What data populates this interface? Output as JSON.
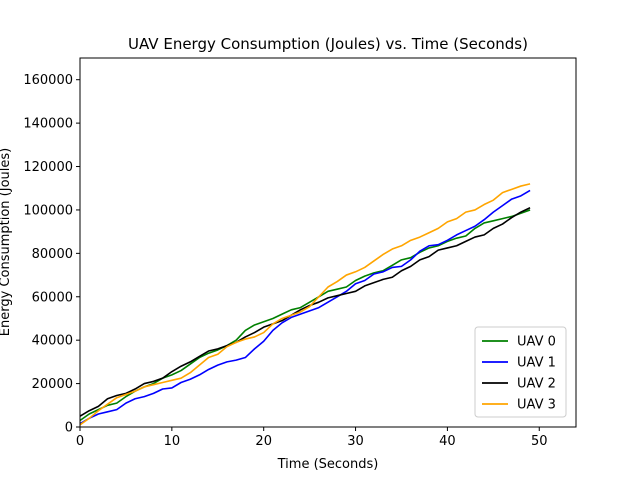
{
  "chart_data": {
    "type": "line",
    "title": "UAV Energy Consumption (Joules) vs. Time (Seconds)",
    "xlabel": "Time (Seconds)",
    "ylabel": "Energy Consumption (Joules)",
    "xlim": [
      0,
      54
    ],
    "ylim": [
      0,
      170000
    ],
    "xticks": [
      0,
      10,
      20,
      30,
      40,
      50
    ],
    "yticks": [
      0,
      20000,
      40000,
      60000,
      80000,
      100000,
      120000,
      140000,
      160000
    ],
    "grid": false,
    "legend_position": "lower-right",
    "x": [
      0,
      1,
      2,
      3,
      4,
      5,
      6,
      7,
      8,
      9,
      10,
      11,
      12,
      13,
      14,
      15,
      16,
      17,
      18,
      19,
      20,
      21,
      22,
      23,
      24,
      25,
      26,
      27,
      28,
      29,
      30,
      31,
      32,
      33,
      34,
      35,
      36,
      37,
      38,
      39,
      40,
      41,
      42,
      43,
      44,
      45,
      46,
      47,
      48,
      49
    ],
    "series": [
      {
        "name": "UAV 0",
        "color": "#008000",
        "values": [
          3000,
          6000,
          8000,
          10000,
          11000,
          14000,
          16500,
          18500,
          20000,
          22500,
          24000,
          26000,
          29000,
          32000,
          34000,
          35500,
          37500,
          40000,
          44500,
          47000,
          48500,
          50000,
          52000,
          54000,
          55000,
          57500,
          60000,
          62500,
          63500,
          64500,
          67500,
          69500,
          71000,
          72000,
          74500,
          77000,
          78000,
          80500,
          82500,
          83500,
          85500,
          87000,
          88000,
          91500,
          94000,
          95000,
          96000,
          97000,
          98500,
          100000
        ]
      },
      {
        "name": "UAV 1",
        "color": "#0000ff",
        "values": [
          1500,
          4000,
          6000,
          7000,
          8000,
          11000,
          13000,
          14000,
          15500,
          17500,
          18000,
          20500,
          22000,
          24000,
          26500,
          28500,
          30000,
          30800,
          32000,
          36000,
          39500,
          44500,
          48000,
          50500,
          52000,
          53500,
          55000,
          57500,
          60000,
          62500,
          66000,
          67500,
          70500,
          71500,
          73500,
          74000,
          77000,
          81000,
          83500,
          84000,
          86000,
          88500,
          90500,
          92500,
          95500,
          99000,
          102000,
          105000,
          106500,
          109000
        ]
      },
      {
        "name": "UAV 2",
        "color": "#000000",
        "values": [
          5000,
          7500,
          9500,
          13000,
          14500,
          15500,
          17500,
          20000,
          21000,
          22500,
          25500,
          28000,
          30000,
          32500,
          35000,
          36000,
          37500,
          39000,
          41500,
          43500,
          46000,
          47500,
          49000,
          51500,
          54000,
          56000,
          57500,
          59500,
          60500,
          61500,
          62500,
          65000,
          66500,
          68000,
          69000,
          72000,
          74000,
          77000,
          78500,
          81500,
          82500,
          83500,
          85500,
          87500,
          88500,
          91500,
          93500,
          96500,
          99000,
          101000
        ]
      },
      {
        "name": "UAV 3",
        "color": "#ffa500",
        "values": [
          1000,
          4000,
          7500,
          10500,
          13500,
          15000,
          16500,
          18500,
          19500,
          20500,
          21500,
          22500,
          25000,
          28500,
          32000,
          33500,
          37000,
          39000,
          40500,
          41500,
          43500,
          47500,
          50000,
          51500,
          53000,
          55500,
          60000,
          64500,
          67000,
          70000,
          71500,
          73500,
          76500,
          79500,
          82000,
          83500,
          86000,
          87500,
          89500,
          91500,
          94500,
          96000,
          99000,
          100000,
          102500,
          104500,
          108000,
          109500,
          111000,
          112000
        ]
      }
    ]
  }
}
